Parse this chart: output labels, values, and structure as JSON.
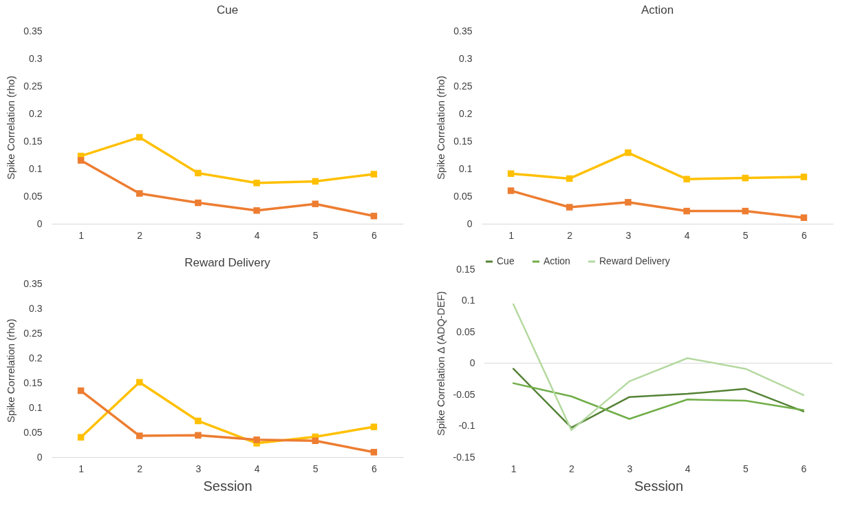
{
  "chart_data": [
    {
      "type": "line",
      "title": "Cue",
      "ylabel": "Spike Correlation (rho)",
      "categories": [
        "1",
        "2",
        "3",
        "4",
        "5",
        "6"
      ],
      "ylim": [
        0,
        0.35
      ],
      "yticks": [
        0,
        0.05,
        0.1,
        0.15,
        0.2,
        0.25,
        0.3,
        0.35
      ],
      "marker": "square",
      "series": [
        {
          "color": "#ffc000",
          "values": [
            0.123,
            0.157,
            0.092,
            0.074,
            0.077,
            0.09
          ]
        },
        {
          "color": "#ed7d31",
          "values": [
            0.115,
            0.055,
            0.038,
            0.024,
            0.036,
            0.014
          ]
        }
      ]
    },
    {
      "type": "line",
      "title": "Action",
      "ylabel": "Spike Correlation (rho)",
      "categories": [
        "1",
        "2",
        "3",
        "4",
        "5",
        "6"
      ],
      "ylim": [
        0,
        0.35
      ],
      "yticks": [
        0,
        0.05,
        0.1,
        0.15,
        0.2,
        0.25,
        0.3,
        0.35
      ],
      "marker": "square",
      "series": [
        {
          "color": "#ffc000",
          "values": [
            0.091,
            0.082,
            0.129,
            0.081,
            0.083,
            0.085
          ]
        },
        {
          "color": "#ed7d31",
          "values": [
            0.06,
            0.03,
            0.039,
            0.023,
            0.023,
            0.011
          ]
        }
      ]
    },
    {
      "type": "line",
      "title": "Reward Delivery",
      "xlabel": "Session",
      "ylabel": "Spike Correlation (rho)",
      "categories": [
        "1",
        "2",
        "3",
        "4",
        "5",
        "6"
      ],
      "ylim": [
        0,
        0.35
      ],
      "yticks": [
        0,
        0.05,
        0.1,
        0.15,
        0.2,
        0.25,
        0.3,
        0.35
      ],
      "marker": "square",
      "series": [
        {
          "color": "#ffc000",
          "values": [
            0.04,
            0.151,
            0.073,
            0.028,
            0.041,
            0.061
          ]
        },
        {
          "color": "#ed7d31",
          "values": [
            0.134,
            0.043,
            0.044,
            0.035,
            0.033,
            0.01
          ]
        }
      ]
    },
    {
      "type": "line",
      "xlabel": "Session",
      "ylabel": "Spike Correlation Δ (ADQ-DEF)",
      "categories": [
        "1",
        "2",
        "3",
        "4",
        "5",
        "6"
      ],
      "ylim": [
        -0.15,
        0.15
      ],
      "yticks": [
        -0.15,
        -0.1,
        -0.05,
        0,
        0.05,
        0.1,
        0.15
      ],
      "legend": "top",
      "ref_lines": [
        {
          "axis": "y",
          "value": 0,
          "color": "#d9d9d9"
        }
      ],
      "series": [
        {
          "name": "Cue",
          "color": "#548235",
          "values": [
            -0.009,
            -0.103,
            -0.054,
            -0.049,
            -0.041,
            -0.077
          ]
        },
        {
          "name": "Action",
          "color": "#70ad47",
          "values": [
            -0.032,
            -0.053,
            -0.089,
            -0.058,
            -0.06,
            -0.075
          ]
        },
        {
          "name": "Reward Delivery",
          "color": "#b4d9a0",
          "values": [
            0.094,
            -0.107,
            -0.029,
            0.008,
            -0.009,
            -0.051
          ]
        }
      ]
    }
  ]
}
